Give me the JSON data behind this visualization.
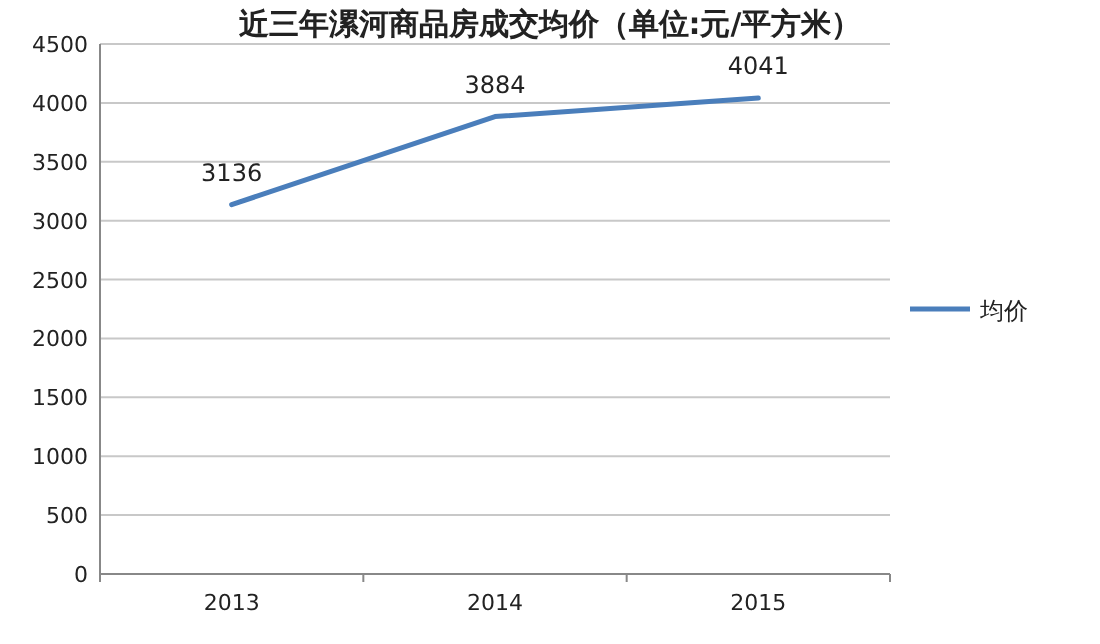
{
  "chart_data": {
    "type": "line",
    "title": "近三年漯河商品房成交均价（单位:元/平方米）",
    "categories": [
      "2013",
      "2014",
      "2015"
    ],
    "series": [
      {
        "name": "均价",
        "color": "#4a7ebb",
        "values": [
          3136,
          3884,
          4041
        ]
      }
    ],
    "ylim": [
      0,
      4500
    ],
    "yticks": [
      0,
      500,
      1000,
      1500,
      2000,
      2500,
      3000,
      3500,
      4000,
      4500
    ],
    "grid": "y",
    "legend": "right",
    "data_labels": true,
    "marker": "none",
    "line_style": "solid"
  }
}
